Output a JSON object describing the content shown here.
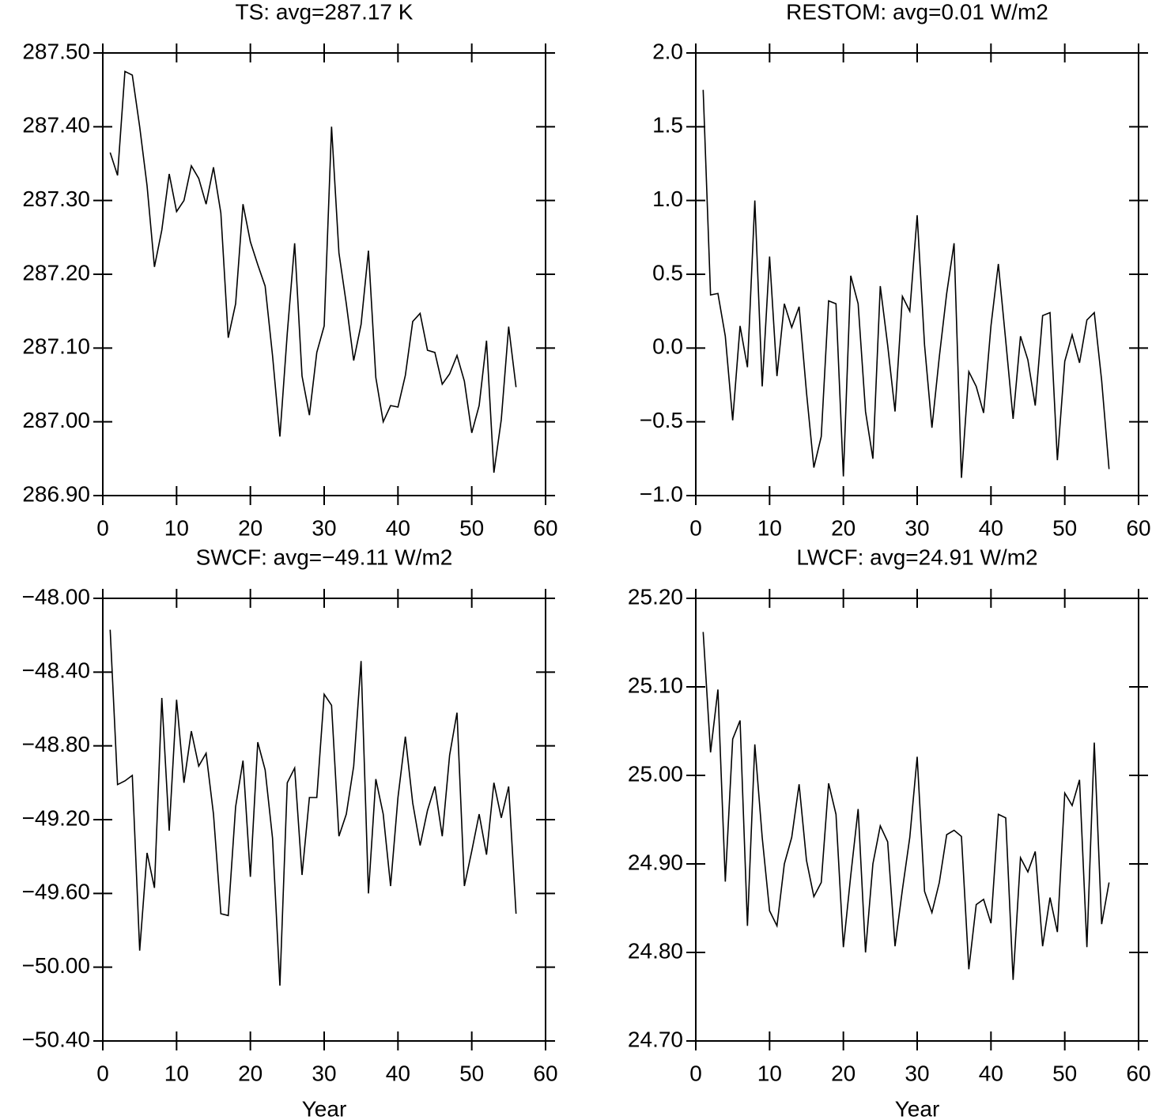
{
  "chart_data": [
    {
      "type": "line",
      "title": "TS: avg=287.17 K",
      "color": "#000000",
      "x": [
        1,
        2,
        3,
        4,
        5,
        6,
        7,
        8,
        9,
        10,
        11,
        12,
        13,
        14,
        15,
        16,
        17,
        18,
        19,
        20,
        21,
        22,
        23,
        24,
        25,
        26,
        27,
        28,
        29,
        30,
        31,
        32,
        33,
        34,
        35,
        36,
        37,
        38,
        39,
        40,
        41,
        42,
        43,
        44,
        45,
        46,
        47,
        48,
        49,
        50,
        51,
        52,
        53,
        54,
        55,
        56
      ],
      "values": [
        287.365,
        287.334,
        287.475,
        287.47,
        287.4,
        287.32,
        287.21,
        287.26,
        287.336,
        287.285,
        287.3,
        287.347,
        287.33,
        287.295,
        287.345,
        287.283,
        287.114,
        287.16,
        287.295,
        287.244,
        287.213,
        287.184,
        287.09,
        286.98,
        287.12,
        287.242,
        287.062,
        287.009,
        287.094,
        287.13,
        287.4,
        287.229,
        287.16,
        287.083,
        287.132,
        287.232,
        287.06,
        287.0,
        287.022,
        287.02,
        287.063,
        287.136,
        287.147,
        287.097,
        287.094,
        287.051,
        287.065,
        287.09,
        287.055,
        286.985,
        287.022,
        287.11,
        286.931,
        287.003,
        287.129,
        287.047
      ],
      "xlim": [
        0,
        60
      ],
      "xticks": [
        0,
        10,
        20,
        30,
        40,
        50,
        60
      ],
      "ylim": [
        286.9,
        287.5
      ],
      "yticks": [
        {
          "value": 286.9,
          "label": "286.90"
        },
        {
          "value": 287.0,
          "label": "287.00"
        },
        {
          "value": 287.1,
          "label": "287.10"
        },
        {
          "value": 287.2,
          "label": "287.20"
        },
        {
          "value": 287.3,
          "label": "287.30"
        },
        {
          "value": 287.4,
          "label": "287.40"
        },
        {
          "value": 287.5,
          "label": "287.50"
        }
      ]
    },
    {
      "type": "line",
      "title": "RESTOM: avg=0.01 W/m2",
      "color": "#000000",
      "x": [
        1,
        2,
        3,
        4,
        5,
        6,
        7,
        8,
        9,
        10,
        11,
        12,
        13,
        14,
        15,
        16,
        17,
        18,
        19,
        20,
        21,
        22,
        23,
        24,
        25,
        26,
        27,
        28,
        29,
        30,
        31,
        32,
        33,
        34,
        35,
        36,
        37,
        38,
        39,
        40,
        41,
        42,
        43,
        44,
        45,
        46,
        47,
        48,
        49,
        50,
        51,
        52,
        53,
        54,
        55,
        56
      ],
      "values": [
        1.75,
        0.36,
        0.37,
        0.08,
        -0.49,
        0.15,
        -0.13,
        1.0,
        -0.26,
        0.62,
        -0.19,
        0.3,
        0.14,
        0.28,
        -0.3,
        -0.81,
        -0.6,
        0.32,
        0.3,
        -0.87,
        0.49,
        0.3,
        -0.43,
        -0.75,
        0.42,
        0.02,
        -0.43,
        0.35,
        0.25,
        0.9,
        0.02,
        -0.54,
        -0.06,
        0.37,
        0.71,
        -0.88,
        -0.16,
        -0.26,
        -0.44,
        0.15,
        0.57,
        0.05,
        -0.48,
        0.08,
        -0.08,
        -0.39,
        0.22,
        0.24,
        -0.76,
        -0.09,
        0.09,
        -0.1,
        0.19,
        0.24,
        -0.22,
        -0.82
      ],
      "xlim": [
        0,
        60
      ],
      "xticks": [
        0,
        10,
        20,
        30,
        40,
        50,
        60
      ],
      "ylim": [
        -1.0,
        2.0
      ],
      "yticks": [
        {
          "value": -1.0,
          "label": "−1.0"
        },
        {
          "value": -0.5,
          "label": "−0.5"
        },
        {
          "value": 0.0,
          "label": "0.0"
        },
        {
          "value": 0.5,
          "label": "0.5"
        },
        {
          "value": 1.0,
          "label": "1.0"
        },
        {
          "value": 1.5,
          "label": "1.5"
        },
        {
          "value": 2.0,
          "label": "2.0"
        }
      ]
    },
    {
      "type": "line",
      "title": "SWCF: avg=−49.11 W/m2",
      "xlabel": "Year",
      "color": "#000000",
      "x": [
        1,
        2,
        3,
        4,
        5,
        6,
        7,
        8,
        9,
        10,
        11,
        12,
        13,
        14,
        15,
        16,
        17,
        18,
        19,
        20,
        21,
        22,
        23,
        24,
        25,
        26,
        27,
        28,
        29,
        30,
        31,
        32,
        33,
        34,
        35,
        36,
        37,
        38,
        39,
        40,
        41,
        42,
        43,
        44,
        45,
        46,
        47,
        48,
        49,
        50,
        51,
        52,
        53,
        54,
        55,
        56
      ],
      "values": [
        -48.17,
        -49.01,
        -48.99,
        -48.96,
        -49.91,
        -49.38,
        -49.57,
        -48.54,
        -49.26,
        -48.55,
        -49.0,
        -48.72,
        -48.91,
        -48.84,
        -49.17,
        -49.71,
        -49.72,
        -49.13,
        -48.88,
        -49.51,
        -48.78,
        -48.93,
        -49.3,
        -50.1,
        -49.0,
        -48.92,
        -49.5,
        -49.08,
        -49.08,
        -48.52,
        -48.58,
        -49.29,
        -49.17,
        -48.91,
        -48.34,
        -49.6,
        -48.98,
        -49.17,
        -49.56,
        -49.08,
        -48.75,
        -49.11,
        -49.34,
        -49.15,
        -49.02,
        -49.29,
        -48.85,
        -48.62,
        -49.56,
        -49.37,
        -49.17,
        -49.39,
        -49.0,
        -49.19,
        -49.02,
        -49.71
      ],
      "xlim": [
        0,
        60
      ],
      "xticks": [
        0,
        10,
        20,
        30,
        40,
        50,
        60
      ],
      "ylim": [
        -50.4,
        -48.0
      ],
      "yticks": [
        {
          "value": -50.4,
          "label": "−50.40"
        },
        {
          "value": -50.0,
          "label": "−50.00"
        },
        {
          "value": -49.6,
          "label": "−49.60"
        },
        {
          "value": -49.2,
          "label": "−49.20"
        },
        {
          "value": -48.8,
          "label": "−48.80"
        },
        {
          "value": -48.4,
          "label": "−48.40"
        },
        {
          "value": -48.0,
          "label": "−48.00"
        }
      ]
    },
    {
      "type": "line",
      "title": "LWCF: avg=24.91 W/m2",
      "xlabel": "Year",
      "color": "#000000",
      "x": [
        1,
        2,
        3,
        4,
        5,
        6,
        7,
        8,
        9,
        10,
        11,
        12,
        13,
        14,
        15,
        16,
        17,
        18,
        19,
        20,
        21,
        22,
        23,
        24,
        25,
        26,
        27,
        28,
        29,
        30,
        31,
        32,
        33,
        34,
        35,
        36,
        37,
        38,
        39,
        40,
        41,
        42,
        43,
        44,
        45,
        46,
        47,
        48,
        49,
        50,
        51,
        52,
        53,
        54,
        55,
        56
      ],
      "values": [
        25.162,
        25.026,
        25.097,
        24.88,
        25.041,
        25.062,
        24.83,
        25.035,
        24.93,
        24.847,
        24.83,
        24.9,
        24.93,
        24.99,
        24.904,
        24.863,
        24.879,
        24.991,
        24.956,
        24.806,
        24.887,
        24.962,
        24.8,
        24.9,
        24.943,
        24.925,
        24.807,
        24.871,
        24.93,
        25.021,
        24.869,
        24.845,
        24.879,
        24.933,
        24.938,
        24.931,
        24.781,
        24.854,
        24.86,
        24.833,
        24.956,
        24.952,
        24.769,
        24.907,
        24.891,
        24.914,
        24.807,
        24.862,
        24.823,
        24.98,
        24.966,
        24.995,
        24.806,
        25.037,
        24.832,
        24.879
      ],
      "xlim": [
        0,
        60
      ],
      "xticks": [
        0,
        10,
        20,
        30,
        40,
        50,
        60
      ],
      "ylim": [
        24.7,
        25.2
      ],
      "yticks": [
        {
          "value": 24.7,
          "label": "24.70"
        },
        {
          "value": 24.8,
          "label": "24.80"
        },
        {
          "value": 24.9,
          "label": "24.90"
        },
        {
          "value": 25.0,
          "label": "25.00"
        },
        {
          "value": 25.1,
          "label": "25.10"
        },
        {
          "value": 25.2,
          "label": "25.20"
        }
      ]
    }
  ]
}
